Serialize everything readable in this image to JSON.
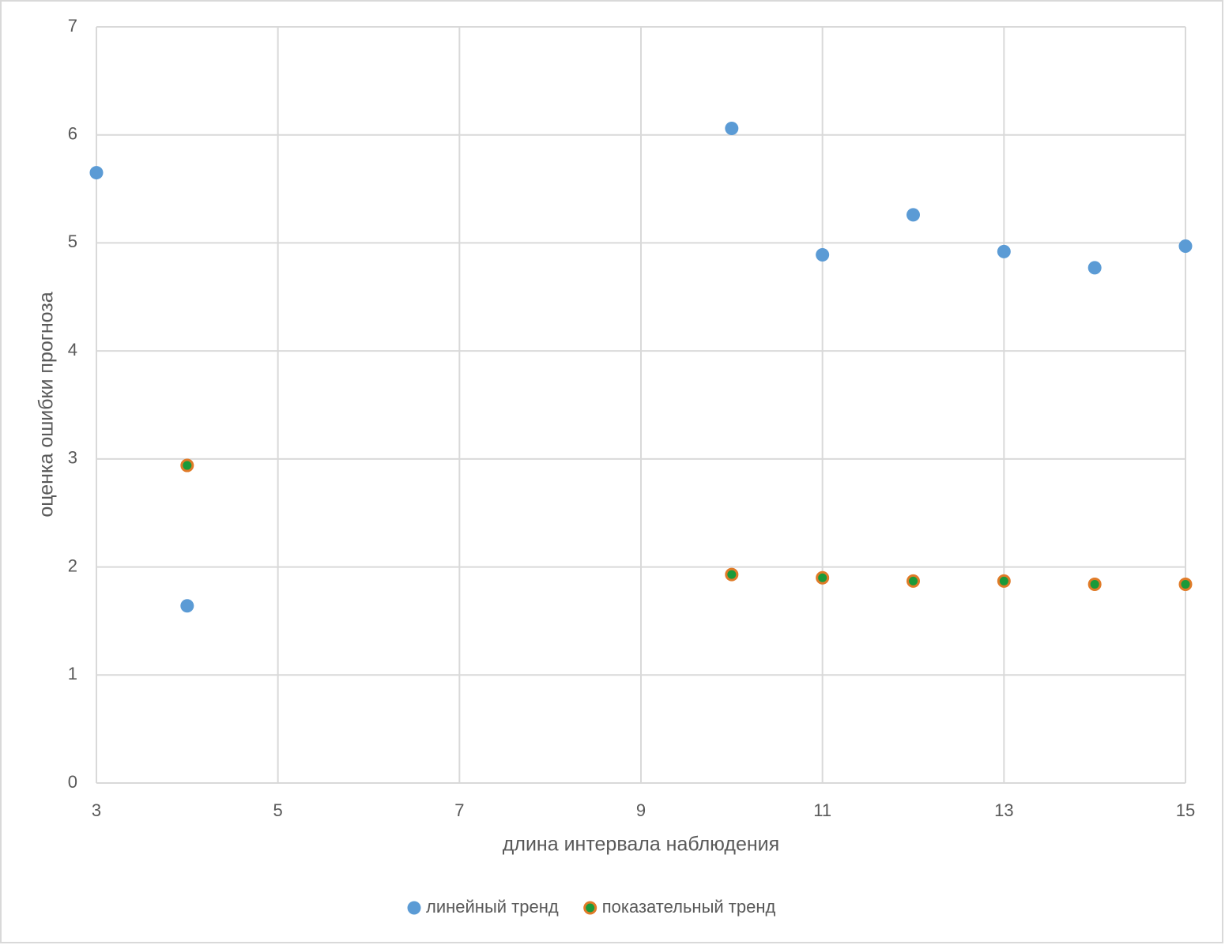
{
  "chart_data": {
    "type": "scatter",
    "x_label": "длина интервала наблюдения",
    "y_label": "оценка ошибки прогноза",
    "xlim": [
      3,
      15
    ],
    "xticks": [
      3,
      5,
      7,
      9,
      11,
      13,
      15
    ],
    "ylim": [
      0,
      7
    ],
    "yticks": [
      0,
      1,
      2,
      3,
      4,
      5,
      6,
      7
    ],
    "grid": true,
    "legend": "bottom",
    "series": [
      {
        "name": "линейный тренд",
        "color": "#5b9bd5",
        "x": [
          3,
          4,
          10,
          11,
          12,
          13,
          14,
          15
        ],
        "values": [
          5.65,
          1.64,
          6.06,
          4.89,
          5.26,
          4.92,
          4.77,
          4.97
        ]
      },
      {
        "name": "показательный тренд",
        "color": "#1a9a3a",
        "edgecolor": "#e07b28",
        "x": [
          4,
          10,
          11,
          12,
          13,
          14,
          15
        ],
        "values": [
          2.94,
          1.93,
          1.9,
          1.87,
          1.87,
          1.84,
          1.84
        ]
      }
    ]
  }
}
